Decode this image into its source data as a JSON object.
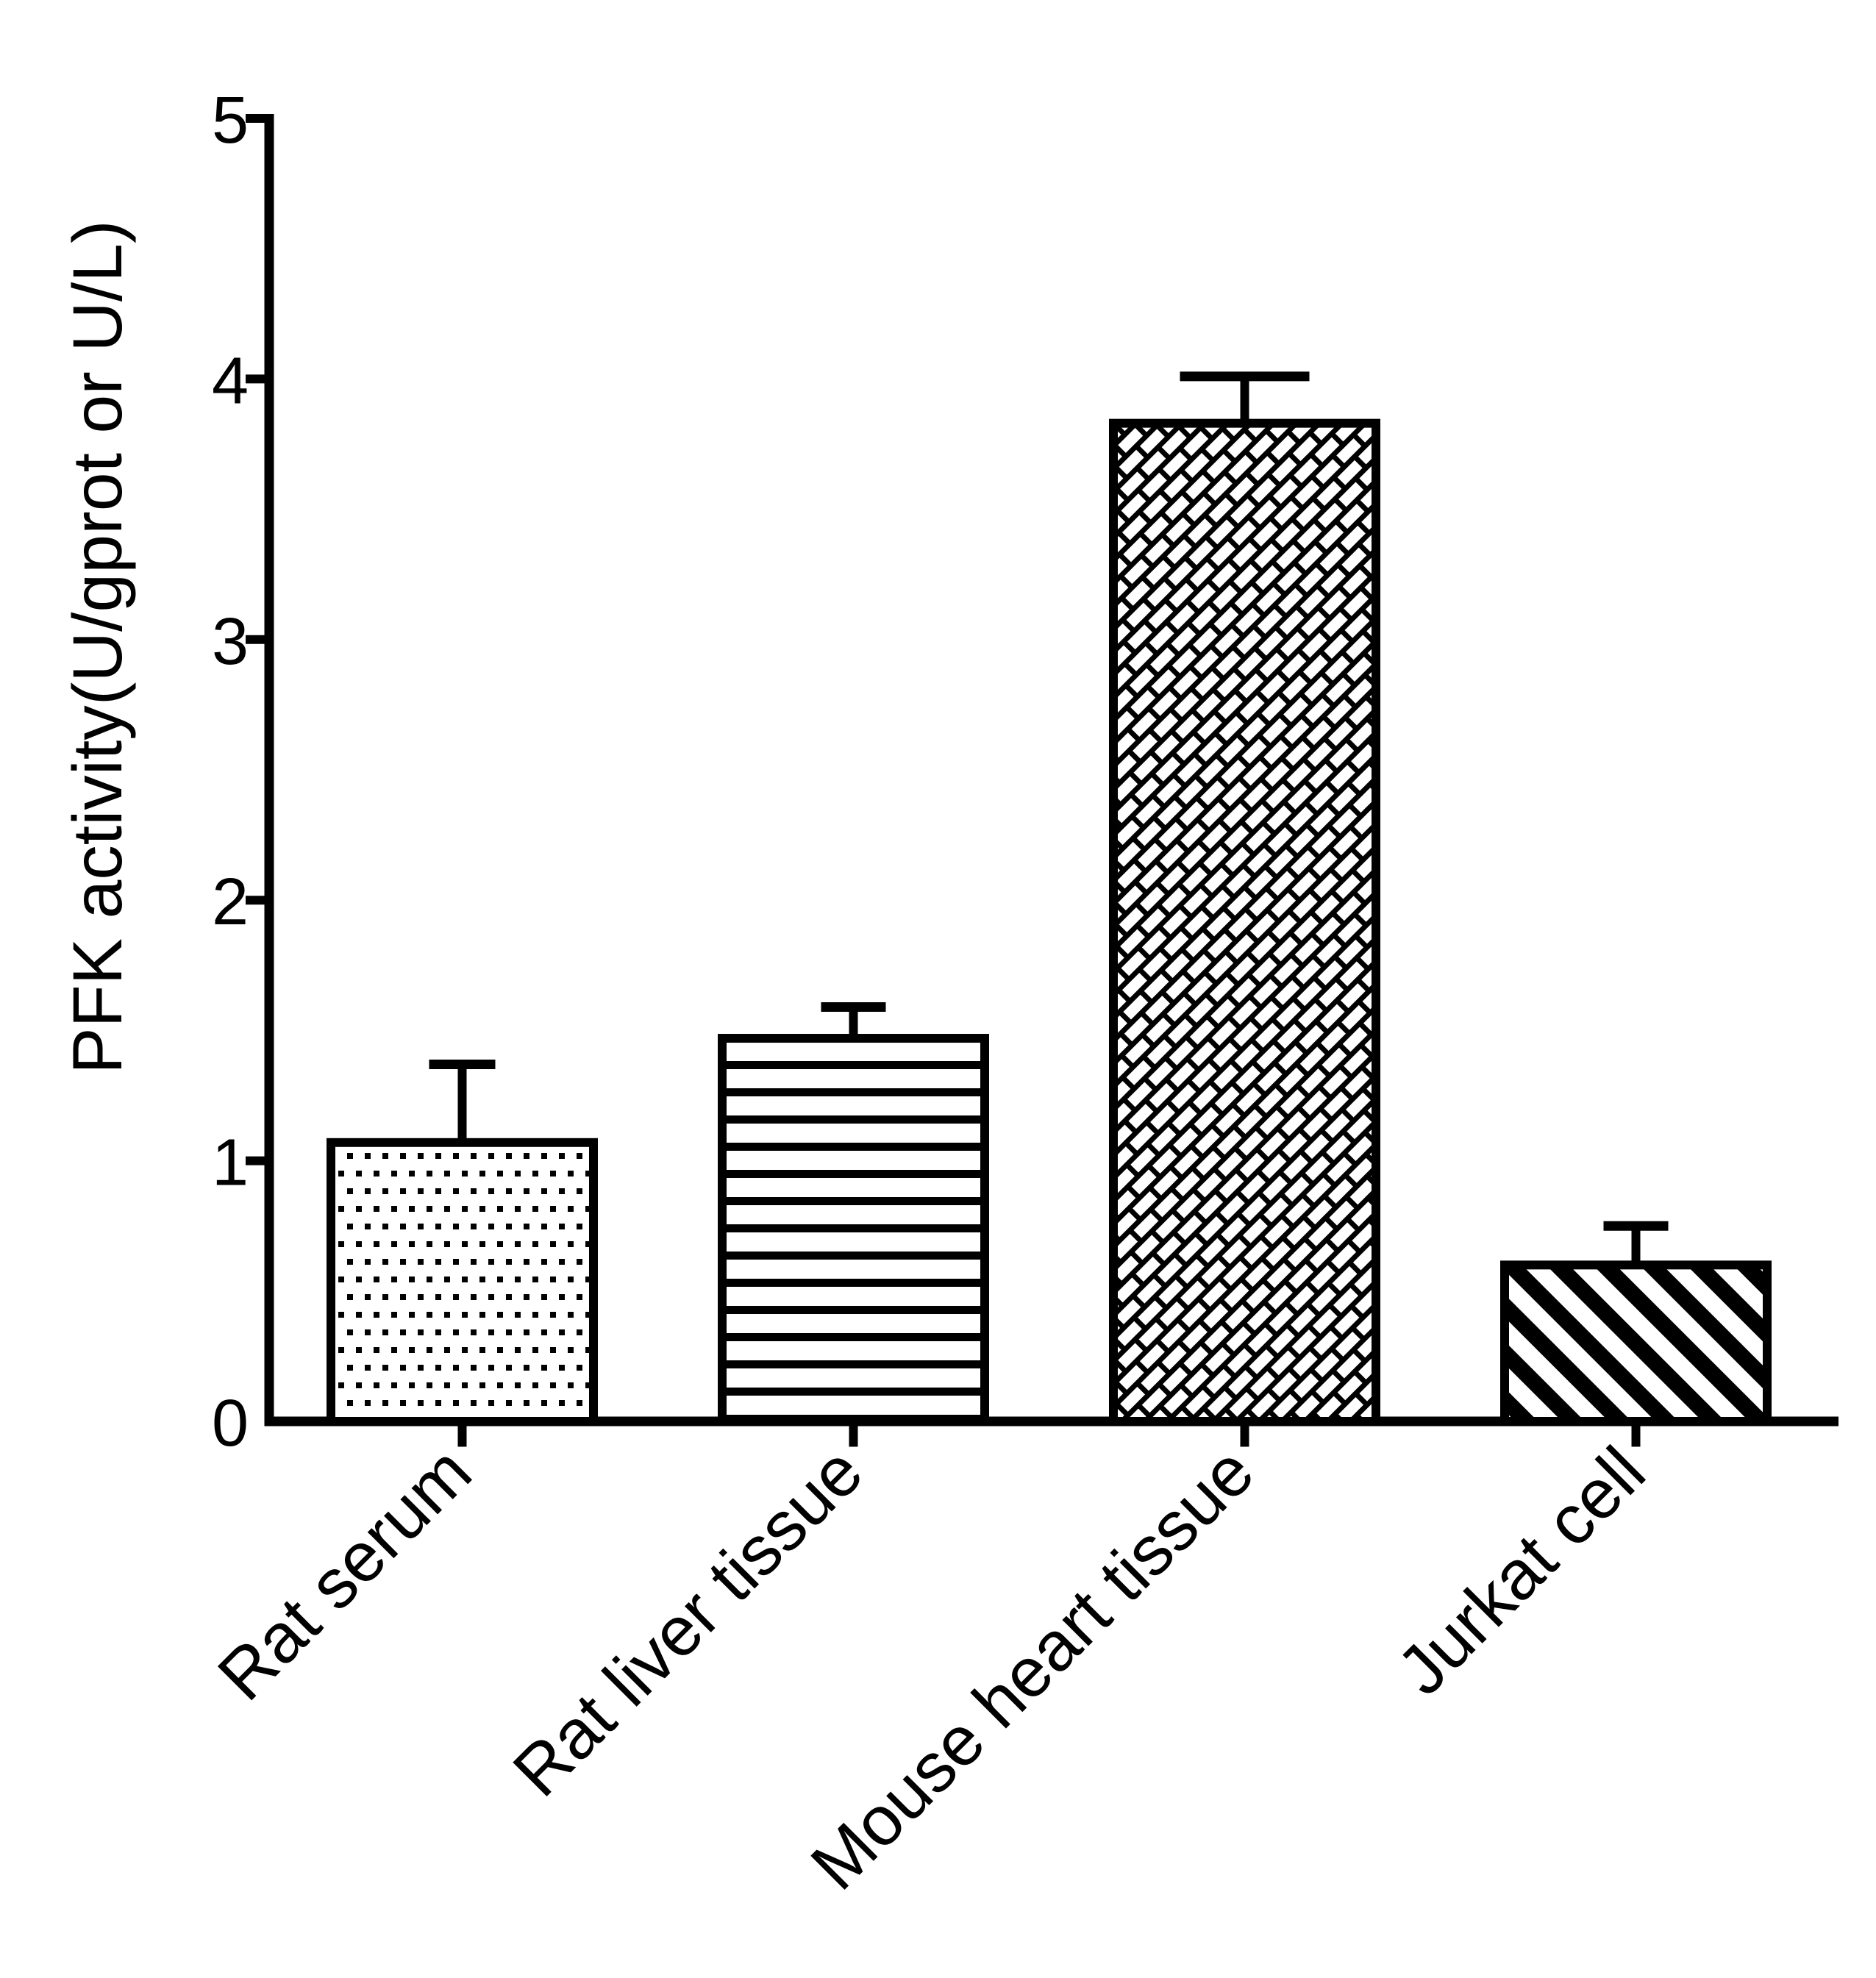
{
  "figure": {
    "background": "#ffffff",
    "ink_color": "#000000"
  },
  "chart_data": {
    "type": "bar",
    "title": "",
    "ylabel": "PFK activity(U/gprot or U/L)",
    "xlabel": "",
    "ylim": [
      0,
      5
    ],
    "yticks": [
      0,
      1,
      2,
      3,
      4,
      5
    ],
    "grid": false,
    "legend": false,
    "categories": [
      "Rat serum",
      "Rat liver tissue",
      "Mouse heart tissue",
      "Jurkat cell"
    ],
    "values": [
      1.07,
      1.47,
      3.83,
      0.6
    ],
    "errors_plus": [
      0.3,
      0.12,
      0.18,
      0.15
    ],
    "error_bar_tops": [
      1.37,
      1.59,
      4.01,
      0.75
    ],
    "error_bar_style": "upper-cap-only",
    "bar_fill": "#ffffff",
    "bar_stroke": "#000000",
    "bar_patterns": [
      "fine-dots",
      "horizontal-lines",
      "diagonal-bricks",
      "diagonal-stripes"
    ]
  }
}
